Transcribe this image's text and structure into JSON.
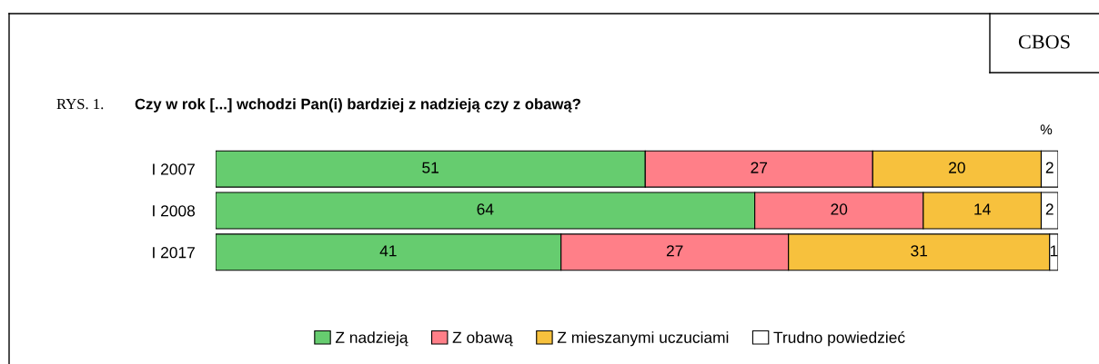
{
  "chart_data": {
    "type": "bar",
    "orientation": "horizontal",
    "stacked": true,
    "title": "Czy w rok [...] wchodzi Pan(i) bardziej z nadzieją czy z obawą?",
    "annotations": [
      "RYS. 1.",
      "%",
      "CBOS"
    ],
    "categories": [
      "I 2007",
      "I 2008",
      "I 2017"
    ],
    "series": [
      {
        "name": "Z nadzieją",
        "color": "#66cc6f",
        "values": [
          51,
          64,
          41
        ]
      },
      {
        "name": "Z obawą",
        "color": "#ff7f88",
        "values": [
          27,
          20,
          27
        ]
      },
      {
        "name": "Z mieszanymi uczuciami",
        "color": "#f7c13d",
        "values": [
          20,
          14,
          31
        ]
      },
      {
        "name": "Trudno powiedzieć",
        "color": "#ffffff",
        "values": [
          2,
          2,
          1
        ]
      }
    ],
    "xlim": [
      0,
      100
    ],
    "data_labels": true,
    "legend": "bottom",
    "grid": false
  }
}
